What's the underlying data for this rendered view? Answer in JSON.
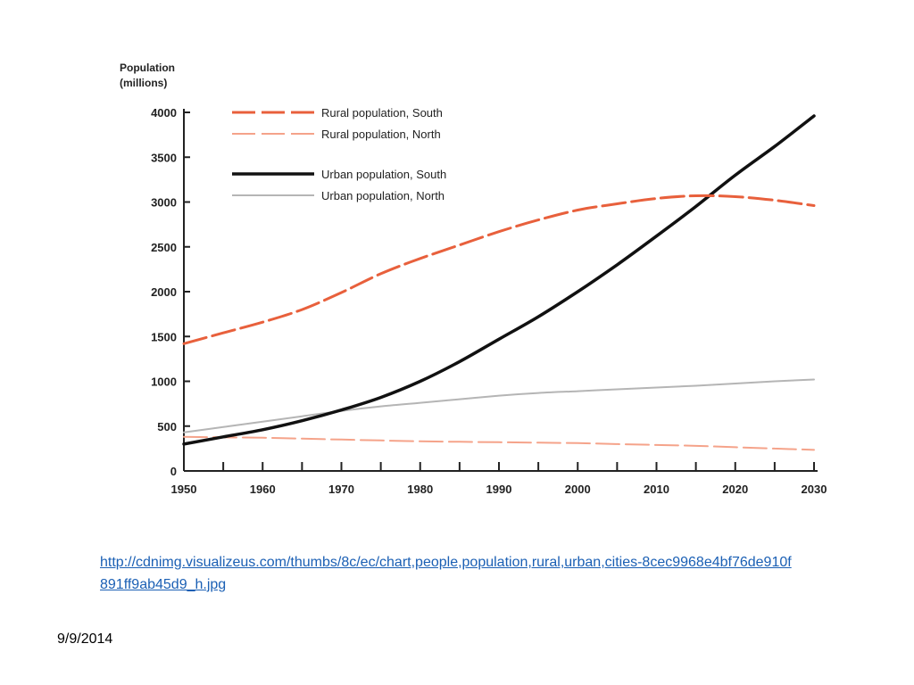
{
  "chart_data": {
    "type": "line",
    "ylabel": "Population\n(millions)",
    "xlabel": "",
    "x": [
      1950,
      1955,
      1960,
      1965,
      1970,
      1975,
      1980,
      1985,
      1990,
      1995,
      2000,
      2005,
      2010,
      2015,
      2020,
      2025,
      2030
    ],
    "xticks": [
      1950,
      1960,
      1970,
      1980,
      1990,
      2000,
      2010,
      2020,
      2030
    ],
    "xlim": [
      1950,
      2030
    ],
    "ylim": [
      0,
      4000
    ],
    "yticks": [
      0,
      500,
      1000,
      1500,
      2000,
      2500,
      3000,
      3500,
      4000
    ],
    "grid": false,
    "legend_position": "top-left",
    "series": [
      {
        "name": "Rural population, South",
        "color": "#e8603c",
        "style": "dashed",
        "values": [
          1420,
          1540,
          1660,
          1800,
          1990,
          2200,
          2370,
          2520,
          2670,
          2800,
          2910,
          2980,
          3040,
          3070,
          3060,
          3020,
          2960
        ]
      },
      {
        "name": "Rural population, North",
        "color": "#f5a38a",
        "style": "dashed",
        "values": [
          380,
          375,
          370,
          360,
          350,
          340,
          330,
          325,
          320,
          315,
          310,
          300,
          290,
          280,
          265,
          250,
          235
        ]
      },
      {
        "name": "Urban population, South",
        "color": "#111111",
        "style": "solid",
        "values": [
          300,
          380,
          460,
          560,
          680,
          820,
          1000,
          1220,
          1470,
          1720,
          2000,
          2300,
          2620,
          2950,
          3300,
          3620,
          3960
        ]
      },
      {
        "name": "Urban population, North",
        "color": "#b5b5b5",
        "style": "solid",
        "values": [
          430,
          490,
          550,
          610,
          670,
          720,
          760,
          800,
          840,
          870,
          890,
          910,
          930,
          950,
          975,
          1000,
          1020
        ]
      }
    ]
  },
  "footer": {
    "link": "http://cdnimg.visualizeus.com/thumbs/8c/ec/chart,people,population,rural,urban,cities-8cec9968e4bf76de910f891ff9ab45d9_h.jpg",
    "date": "9/9/2014"
  }
}
